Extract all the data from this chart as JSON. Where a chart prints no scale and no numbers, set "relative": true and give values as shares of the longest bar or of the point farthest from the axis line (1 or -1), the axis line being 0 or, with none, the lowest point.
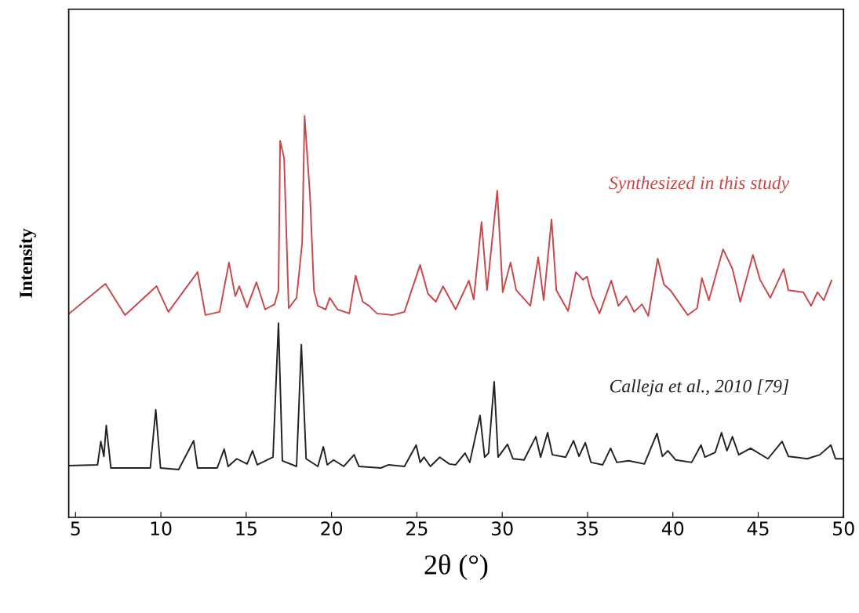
{
  "chart_data": {
    "type": "line",
    "relative": true,
    "xlabel": "2θ (°)",
    "ylabel": "Intensity",
    "xlim": [
      4.6,
      50
    ],
    "xticks": [
      5,
      10,
      15,
      20,
      25,
      30,
      35,
      40,
      45,
      50
    ],
    "tick_labels": "x",
    "grid": false,
    "legend": false,
    "marker": "none",
    "line_style": "solid",
    "series": [
      {
        "name": "Synthesized in this study",
        "color": "#c8484a",
        "x": [
          4.63,
          6.75,
          7.9,
          9.75,
          10.44,
          12.15,
          12.61,
          13.44,
          13.99,
          14.36,
          14.59,
          15.05,
          15.6,
          16.11,
          16.66,
          16.89,
          16.99,
          17.22,
          17.49,
          17.95,
          18.28,
          18.42,
          18.74,
          18.97,
          19.2,
          19.66,
          19.89,
          20.35,
          21.04,
          21.41,
          21.83,
          22.2,
          22.66,
          23.58,
          24.27,
          25.19,
          25.65,
          26.11,
          26.53,
          27.27,
          28.05,
          28.33,
          28.79,
          29.11,
          29.71,
          30.03,
          30.49,
          30.82,
          31.65,
          32.11,
          32.43,
          32.89,
          33.17,
          33.86,
          34.32,
          34.73,
          34.97,
          35.24,
          35.7,
          36.39,
          36.81,
          37.27,
          37.73,
          38.19,
          38.56,
          39.11,
          39.48,
          39.85,
          40.87,
          41.42,
          41.7,
          42.11,
          42.94,
          43.49,
          43.95,
          44.69,
          45.11,
          45.71,
          46.49,
          46.77,
          47.64,
          48.1,
          48.47,
          48.84,
          49.3
        ],
        "values": [
          0.508,
          0.582,
          0.504,
          0.576,
          0.512,
          0.611,
          0.504,
          0.512,
          0.635,
          0.551,
          0.576,
          0.523,
          0.586,
          0.518,
          0.531,
          0.566,
          0.938,
          0.895,
          0.521,
          0.547,
          0.684,
          1.0,
          0.801,
          0.566,
          0.527,
          0.518,
          0.547,
          0.518,
          0.508,
          0.602,
          0.537,
          0.527,
          0.508,
          0.504,
          0.512,
          0.629,
          0.557,
          0.537,
          0.576,
          0.518,
          0.59,
          0.543,
          0.736,
          0.566,
          0.814,
          0.561,
          0.635,
          0.566,
          0.527,
          0.648,
          0.541,
          0.742,
          0.566,
          0.514,
          0.611,
          0.592,
          0.6,
          0.553,
          0.508,
          0.59,
          0.527,
          0.551,
          0.512,
          0.531,
          0.502,
          0.645,
          0.58,
          0.566,
          0.504,
          0.521,
          0.596,
          0.541,
          0.668,
          0.619,
          0.537,
          0.654,
          0.592,
          0.547,
          0.619,
          0.566,
          0.561,
          0.527,
          0.561,
          0.541,
          0.59
        ]
      },
      {
        "name": "Calleja et al., 2010 [79]",
        "color": "#222222",
        "x": [
          4.63,
          6.29,
          6.48,
          6.66,
          6.8,
          7.07,
          9.38,
          9.7,
          9.98,
          11.04,
          11.92,
          12.15,
          13.3,
          13.71,
          13.94,
          14.45,
          15.05,
          15.37,
          15.65,
          16.57,
          16.89,
          17.12,
          17.95,
          18.23,
          18.51,
          19.2,
          19.52,
          19.75,
          20.12,
          20.72,
          21.32,
          21.6,
          22.89,
          23.35,
          24.27,
          24.96,
          25.19,
          25.42,
          25.79,
          26.34,
          26.9,
          27.27,
          27.82,
          28.1,
          28.7,
          28.97,
          29.2,
          29.53,
          29.76,
          30.31,
          30.63,
          31.28,
          31.97,
          32.25,
          32.66,
          32.94,
          33.72,
          34.18,
          34.5,
          34.87,
          35.2,
          35.89,
          36.35,
          36.72,
          37.41,
          38.33,
          39.07,
          39.39,
          39.71,
          40.17,
          41.1,
          41.65,
          41.88,
          42.48,
          42.85,
          43.17,
          43.49,
          43.86,
          44.55,
          45.57,
          46.4,
          46.77,
          47.87,
          48.61,
          49.26,
          49.53,
          50.0
        ],
        "values": [
          0.129,
          0.131,
          0.189,
          0.152,
          0.229,
          0.123,
          0.123,
          0.268,
          0.123,
          0.119,
          0.191,
          0.123,
          0.123,
          0.17,
          0.127,
          0.146,
          0.133,
          0.166,
          0.131,
          0.15,
          0.484,
          0.141,
          0.127,
          0.43,
          0.146,
          0.127,
          0.176,
          0.131,
          0.143,
          0.127,
          0.156,
          0.127,
          0.123,
          0.131,
          0.127,
          0.18,
          0.137,
          0.15,
          0.127,
          0.15,
          0.133,
          0.131,
          0.16,
          0.137,
          0.254,
          0.15,
          0.16,
          0.338,
          0.15,
          0.182,
          0.146,
          0.143,
          0.201,
          0.15,
          0.211,
          0.156,
          0.15,
          0.191,
          0.152,
          0.186,
          0.137,
          0.131,
          0.172,
          0.137,
          0.141,
          0.133,
          0.209,
          0.152,
          0.166,
          0.143,
          0.137,
          0.18,
          0.15,
          0.162,
          0.211,
          0.166,
          0.201,
          0.156,
          0.172,
          0.146,
          0.189,
          0.152,
          0.146,
          0.156,
          0.18,
          0.146,
          0.146
        ]
      }
    ]
  }
}
